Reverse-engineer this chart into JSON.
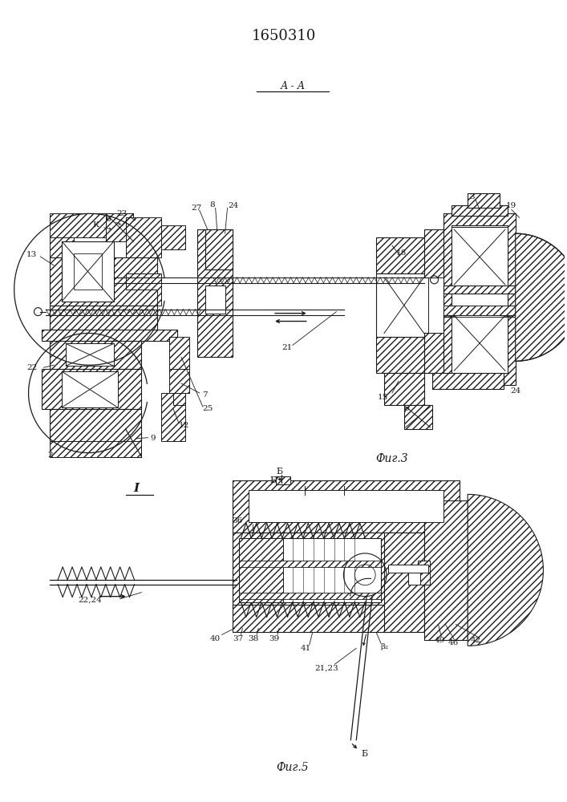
{
  "title": "1650310",
  "bg": "#ffffff",
  "lc": "#1a1a1a",
  "fig3_caption": "Фиг.3",
  "fig5_caption": "Фиг.5",
  "section_aa": "А - А"
}
